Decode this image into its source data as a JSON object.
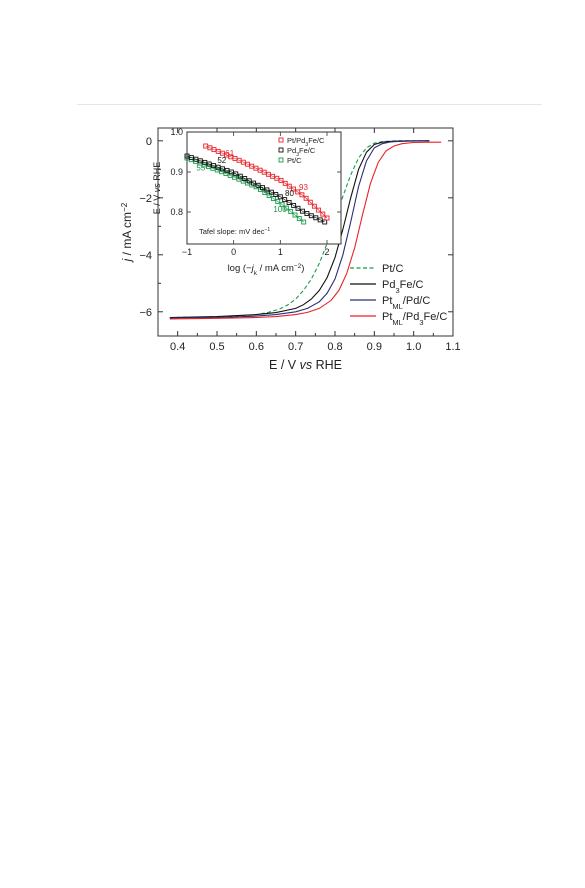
{
  "chart_data": [
    {
      "type": "line",
      "role": "main",
      "xlabel": {
        "pre": "E / V ",
        "ital": "vs",
        "post": " RHE"
      },
      "ylabel": {
        "ital": "j",
        "main": " / mA cm",
        "sup": "−2"
      },
      "xlim": [
        0.35,
        1.1
      ],
      "ylim": [
        -6.85,
        0.45
      ],
      "xticks": [
        0.4,
        0.5,
        0.6,
        0.7,
        0.8,
        0.9,
        1.0,
        1.1
      ],
      "xtick_labels": [
        "0.4",
        "0.5",
        "0.6",
        "0.7",
        "0.8",
        "0.9",
        "1.0",
        "1.1"
      ],
      "yticks": [
        0,
        -2,
        -4,
        -6
      ],
      "ytick_labels": [
        "0",
        "−2",
        "−4",
        "−6"
      ],
      "legend_position": "bottom-right",
      "series": [
        {
          "name": "Pt/C",
          "color": "#1b9a4c",
          "dash": true,
          "legend": [
            {
              "t": "Pt/C"
            }
          ],
          "x": [
            0.38,
            0.45,
            0.5,
            0.55,
            0.6,
            0.63,
            0.66,
            0.68,
            0.7,
            0.72,
            0.74,
            0.76,
            0.78,
            0.8,
            0.82,
            0.84,
            0.86,
            0.88,
            0.9,
            0.92,
            0.94,
            0.96,
            1.0,
            1.04
          ],
          "y": [
            -6.2,
            -6.19,
            -6.18,
            -6.15,
            -6.1,
            -6.02,
            -5.9,
            -5.76,
            -5.55,
            -5.25,
            -4.85,
            -4.3,
            -3.6,
            -2.8,
            -1.95,
            -1.2,
            -0.6,
            -0.25,
            -0.08,
            -0.03,
            -0.01,
            0.0,
            0.0,
            0.0
          ]
        },
        {
          "name": "Pd3Fe/C",
          "color": "#111111",
          "dash": false,
          "legend": [
            {
              "t": "Pd"
            },
            {
              "t": "3",
              "s": "sub"
            },
            {
              "t": "Fe/C"
            }
          ],
          "x": [
            0.38,
            0.5,
            0.6,
            0.65,
            0.7,
            0.72,
            0.74,
            0.76,
            0.78,
            0.8,
            0.82,
            0.84,
            0.86,
            0.88,
            0.9,
            0.92,
            0.94,
            0.96,
            1.0,
            1.04
          ],
          "y": [
            -6.2,
            -6.17,
            -6.1,
            -6.03,
            -5.88,
            -5.75,
            -5.55,
            -5.25,
            -4.8,
            -4.1,
            -3.1,
            -2.0,
            -1.0,
            -0.4,
            -0.13,
            -0.05,
            -0.02,
            -0.01,
            0.0,
            0.0
          ]
        },
        {
          "name": "PtML/Pd/C",
          "color": "#2a2e7a",
          "dash": false,
          "legend": [
            {
              "t": "Pt"
            },
            {
              "t": "ML",
              "s": "sub"
            },
            {
              "t": "/Pd/C"
            }
          ],
          "x": [
            0.38,
            0.5,
            0.6,
            0.65,
            0.7,
            0.73,
            0.76,
            0.78,
            0.8,
            0.82,
            0.84,
            0.86,
            0.88,
            0.9,
            0.92,
            0.94,
            0.96,
            1.0,
            1.04
          ],
          "y": [
            -6.22,
            -6.2,
            -6.15,
            -6.1,
            -6.0,
            -5.88,
            -5.65,
            -5.35,
            -4.85,
            -4.0,
            -2.85,
            -1.6,
            -0.7,
            -0.25,
            -0.1,
            -0.04,
            -0.02,
            -0.01,
            0.0
          ]
        },
        {
          "name": "PtML/Pd3Fe/C",
          "color": "#e8222a",
          "dash": false,
          "legend": [
            {
              "t": "Pt"
            },
            {
              "t": "ML",
              "s": "sub"
            },
            {
              "t": "/Pd"
            },
            {
              "t": "3",
              "s": "sub"
            },
            {
              "t": "Fe/C"
            }
          ],
          "x": [
            0.38,
            0.5,
            0.6,
            0.65,
            0.7,
            0.73,
            0.76,
            0.79,
            0.81,
            0.83,
            0.85,
            0.87,
            0.89,
            0.91,
            0.93,
            0.95,
            0.97,
            1.0,
            1.04,
            1.07
          ],
          "y": [
            -6.25,
            -6.23,
            -6.2,
            -6.17,
            -6.1,
            -6.02,
            -5.88,
            -5.6,
            -5.25,
            -4.65,
            -3.75,
            -2.6,
            -1.5,
            -0.75,
            -0.35,
            -0.18,
            -0.1,
            -0.06,
            -0.05,
            -0.05
          ]
        }
      ]
    },
    {
      "type": "scatter",
      "role": "inset",
      "xlabel": {
        "pre": "log (−",
        "ital": "j",
        "sub": "k",
        "post": " / mA cm",
        "sup": "−2",
        "close": ")"
      },
      "ylabel": {
        "pre": "E / V ",
        "ital": "vs",
        "post": " RHE"
      },
      "xlim": [
        -1.0,
        2.3
      ],
      "ylim": [
        0.72,
        1.0
      ],
      "xticks": [
        -1,
        0,
        1,
        2
      ],
      "xtick_labels": [
        "−1",
        "0",
        "1",
        "2"
      ],
      "yticks": [
        0.8,
        0.9,
        1.0
      ],
      "ytick_labels": [
        "0.8",
        "0.9",
        "1.0"
      ],
      "legend_position": "top-right",
      "annotation": {
        "pre": "Tafel slope: mV dec",
        "sup": "−1"
      },
      "series": [
        {
          "name": "Pt/Pd3Fe/C",
          "color": "#e8222a",
          "legend": [
            {
              "t": "Pt/Pd"
            },
            {
              "t": "3",
              "s": "sub"
            },
            {
              "t": "Fe/C"
            }
          ],
          "x_start": -0.6,
          "x_end": 2.0,
          "n": 30,
          "curve": [
            [
              -0.6,
              0.965
            ],
            [
              0.2,
              0.925
            ],
            [
              1.0,
              0.88
            ],
            [
              1.5,
              0.84
            ],
            [
              2.0,
              0.785
            ]
          ],
          "slope_labels": [
            {
              "text": "61",
              "x": -0.18,
              "y": 0.94
            },
            {
              "text": "93",
              "x": 1.4,
              "y": 0.855
            }
          ]
        },
        {
          "name": "Pd3Fe/C",
          "color": "#111111",
          "legend": [
            {
              "t": "Pd"
            },
            {
              "t": "3",
              "s": "sub"
            },
            {
              "t": "Fe/C"
            }
          ],
          "x_start": -1.0,
          "x_end": 1.95,
          "n": 32,
          "curve": [
            [
              -1.0,
              0.94
            ],
            [
              0.0,
              0.898
            ],
            [
              1.0,
              0.838
            ],
            [
              1.5,
              0.8
            ],
            [
              1.95,
              0.775
            ]
          ],
          "slope_labels": [
            {
              "text": "52",
              "x": -0.35,
              "y": 0.922
            },
            {
              "text": "80",
              "x": 1.1,
              "y": 0.84
            }
          ]
        },
        {
          "name": "Pt/C",
          "color": "#1b9a4c",
          "legend": [
            {
              "t": "Pt/C"
            }
          ],
          "x_start": -1.0,
          "x_end": 1.5,
          "n": 28,
          "curve": [
            [
              -1.0,
              0.935
            ],
            [
              -0.2,
              0.898
            ],
            [
              0.5,
              0.862
            ],
            [
              1.0,
              0.822
            ],
            [
              1.5,
              0.775
            ]
          ],
          "slope_labels": [
            {
              "text": "55",
              "x": -0.8,
              "y": 0.904
            },
            {
              "text": "100",
              "x": 0.85,
              "y": 0.8
            }
          ]
        }
      ]
    }
  ]
}
